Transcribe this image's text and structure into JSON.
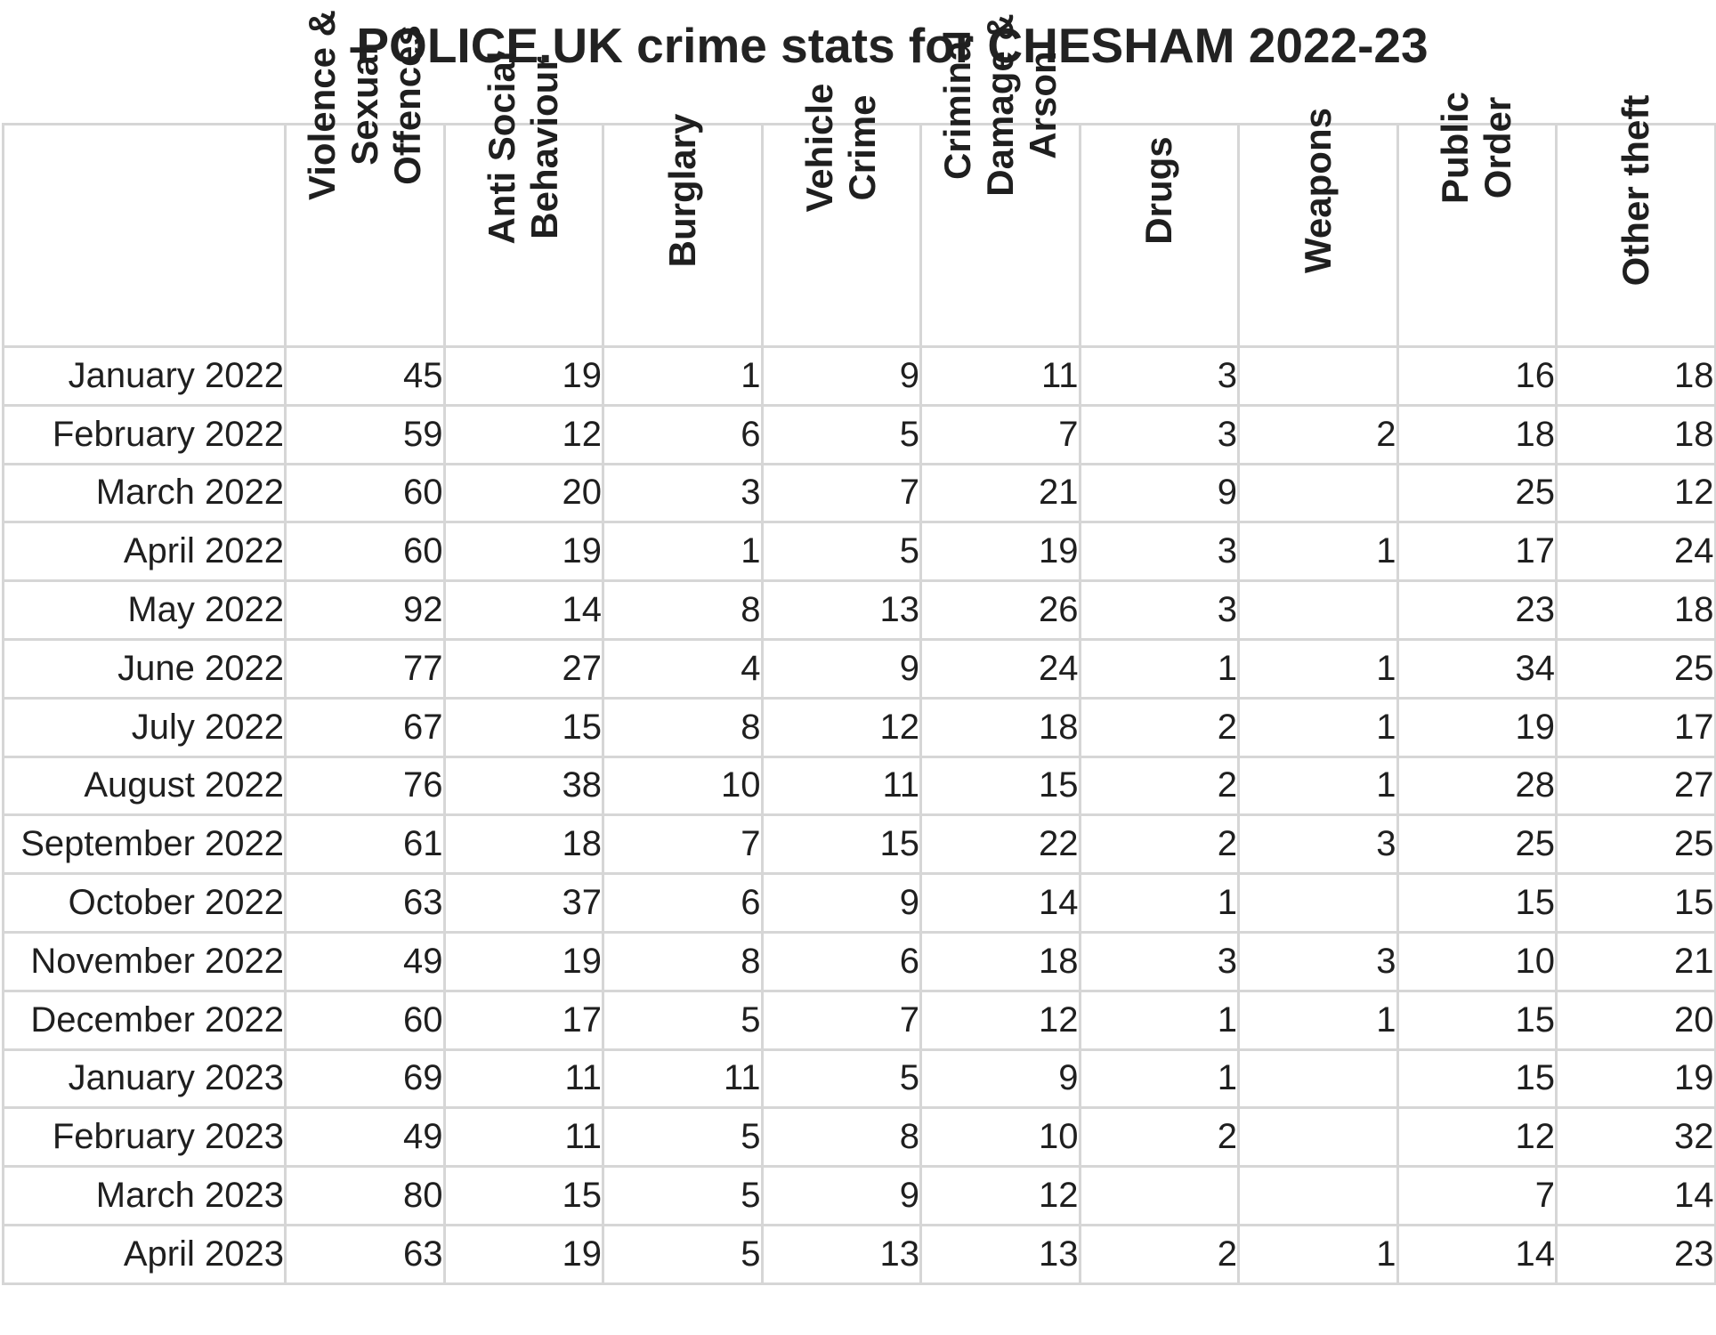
{
  "title": "POLICE.UK crime stats for CHESHAM 2022-23",
  "chart_data": {
    "type": "table",
    "title": "POLICE.UK crime stats for CHESHAM 2022-23",
    "columns": [
      "Violence & Sexual Offences",
      "Anti Social Behaviour",
      "Burglary",
      "Vehicle Crime",
      "Criminal Damage & Arson",
      "Drugs",
      "Weapons",
      "Public Order",
      "Other theft"
    ],
    "rows": [
      {
        "label": "January 2022",
        "values": [
          "45",
          "19",
          "1",
          "9",
          "11",
          "3",
          "",
          "16",
          "18"
        ]
      },
      {
        "label": "February 2022",
        "values": [
          "59",
          "12",
          "6",
          "5",
          "7",
          "3",
          "2",
          "18",
          "18"
        ]
      },
      {
        "label": "March 2022",
        "values": [
          "60",
          "20",
          "3",
          "7",
          "21",
          "9",
          "",
          "25",
          "12"
        ]
      },
      {
        "label": "April 2022",
        "values": [
          "60",
          "19",
          "1",
          "5",
          "19",
          "3",
          "1",
          "17",
          "24"
        ]
      },
      {
        "label": "May 2022",
        "values": [
          "92",
          "14",
          "8",
          "13",
          "26",
          "3",
          "",
          "23",
          "18"
        ]
      },
      {
        "label": "June 2022",
        "values": [
          "77",
          "27",
          "4",
          "9",
          "24",
          "1",
          "1",
          "34",
          "25"
        ]
      },
      {
        "label": "July 2022",
        "values": [
          "67",
          "15",
          "8",
          "12",
          "18",
          "2",
          "1",
          "19",
          "17"
        ]
      },
      {
        "label": "August 2022",
        "values": [
          "76",
          "38",
          "10",
          "11",
          "15",
          "2",
          "1",
          "28",
          "27"
        ]
      },
      {
        "label": "September 2022",
        "values": [
          "61",
          "18",
          "7",
          "15",
          "22",
          "2",
          "3",
          "25",
          "25"
        ]
      },
      {
        "label": "October 2022",
        "values": [
          "63",
          "37",
          "6",
          "9",
          "14",
          "1",
          "",
          "15",
          "15"
        ]
      },
      {
        "label": "November 2022",
        "values": [
          "49",
          "19",
          "8",
          "6",
          "18",
          "3",
          "3",
          "10",
          "21"
        ]
      },
      {
        "label": "December 2022",
        "values": [
          "60",
          "17",
          "5",
          "7",
          "12",
          "1",
          "1",
          "15",
          "20"
        ]
      },
      {
        "label": "January 2023",
        "values": [
          "69",
          "11",
          "11",
          "5",
          "9",
          "1",
          "",
          "15",
          "19"
        ]
      },
      {
        "label": "February 2023",
        "values": [
          "49",
          "11",
          "5",
          "8",
          "10",
          "2",
          "",
          "12",
          "32"
        ]
      },
      {
        "label": "March 2023",
        "values": [
          "80",
          "15",
          "5",
          "9",
          "12",
          "",
          "",
          "7",
          "14"
        ]
      },
      {
        "label": "April 2023",
        "values": [
          "63",
          "19",
          "5",
          "13",
          "13",
          "2",
          "1",
          "14",
          "23"
        ]
      }
    ]
  }
}
